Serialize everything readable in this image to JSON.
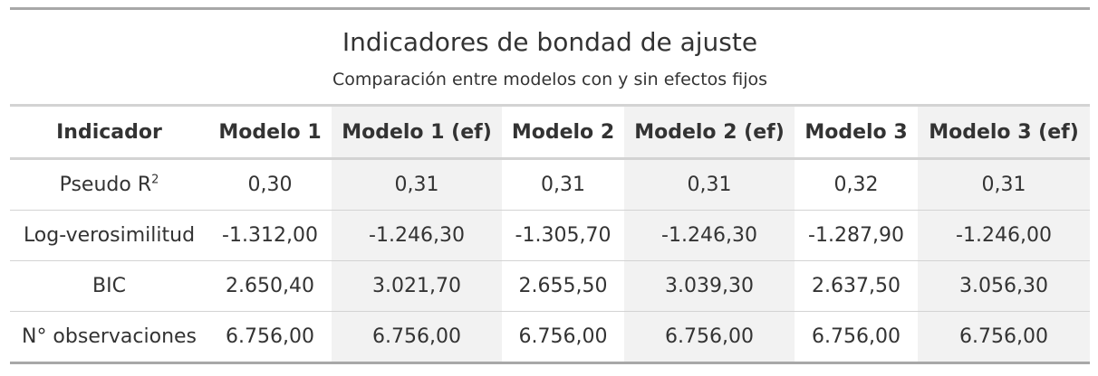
{
  "table": {
    "title": "Indicadores de bondad de ajuste",
    "subtitle": "Comparación entre modelos con y sin efectos fijos",
    "headers": [
      "Indicador",
      "Modelo 1",
      "Modelo 1 (ef)",
      "Modelo 2",
      "Modelo 2 (ef)",
      "Modelo 3",
      "Modelo 3 (ef)"
    ],
    "rows": [
      {
        "label": "Pseudo R",
        "label_sup": "2",
        "values": [
          "0,30",
          "0,31",
          "0,31",
          "0,31",
          "0,32",
          "0,31"
        ]
      },
      {
        "label": "Log-verosimilitud",
        "values": [
          "-1.312,00",
          "-1.246,30",
          "-1.305,70",
          "-1.246,30",
          "-1.287,90",
          "-1.246,00"
        ]
      },
      {
        "label": "BIC",
        "values": [
          "2.650,40",
          "3.021,70",
          "2.655,50",
          "3.039,30",
          "2.637,50",
          "3.056,30"
        ]
      },
      {
        "label": "N° observaciones",
        "values": [
          "6.756,00",
          "6.756,00",
          "6.756,00",
          "6.756,00",
          "6.756,00",
          "6.756,00"
        ]
      }
    ],
    "colors": {
      "text": "#333333",
      "shaded_column": "#f2f2f2",
      "rule_dark": "#a8a8a8",
      "rule_light": "#d3d3d3"
    }
  }
}
